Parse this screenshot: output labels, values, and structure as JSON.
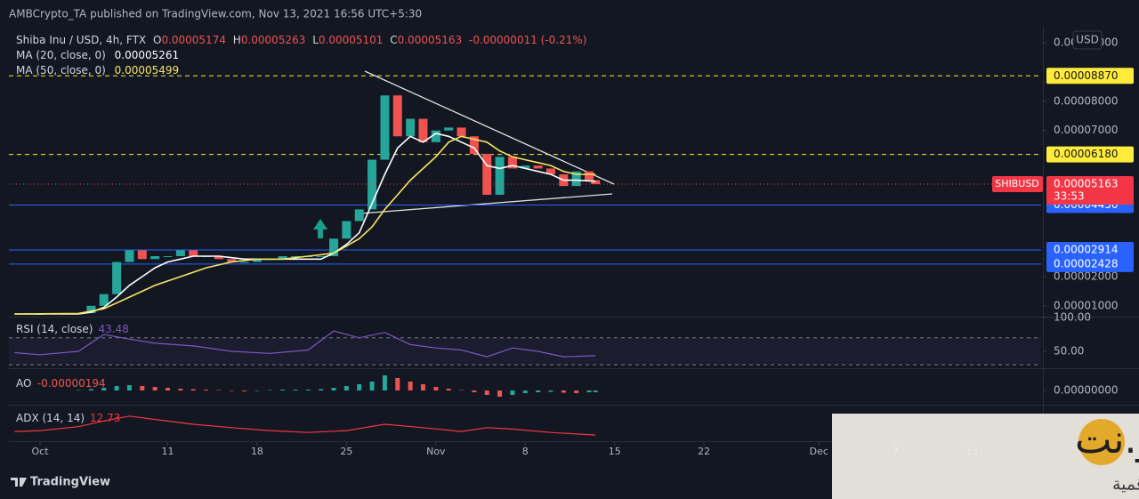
{
  "header": "AMBCrypto_TA published on TradingView.com, Nov 13, 2021 16:56 UTC+5:30",
  "symbol": "Shiba Inu / USD, 4h, FTX",
  "ohlc": [
    {
      "key": "O",
      "value": "0.00005174"
    },
    {
      "key": "H",
      "value": "0.00005263"
    },
    {
      "key": "L",
      "value": "0.00005101"
    },
    {
      "key": "C",
      "value": "0.00005163"
    }
  ],
  "change": "-0.00000011 (-0.21%)",
  "currency_button": "USD",
  "footer": "TradingView",
  "watermark": {
    "name": "الكريبتو.نت",
    "tagline": "أخبار العملات الرقمية"
  },
  "chart_data": [
    {
      "type": "candlestick",
      "xlim": [
        -2.44,
        78.4
      ],
      "ylim": [
        6.6e-06,
        0.000104
      ],
      "xticks": [
        {
          "value": 0,
          "label": "Oct"
        },
        {
          "value": 10,
          "label": "11"
        },
        {
          "value": 17,
          "label": "18"
        },
        {
          "value": 24,
          "label": "25"
        },
        {
          "value": 31,
          "label": "Nov"
        },
        {
          "value": 38,
          "label": "8"
        },
        {
          "value": 45,
          "label": "15"
        },
        {
          "value": 52,
          "label": "22"
        },
        {
          "value": 61,
          "label": "Dec"
        },
        {
          "value": 67,
          "label": "7"
        },
        {
          "value": 73,
          "label": "13"
        }
      ],
      "yticks": [
        {
          "value": 0.0001,
          "label": "0.00010000"
        },
        {
          "value": 8e-05,
          "label": "0.00008000"
        },
        {
          "value": 7e-05,
          "label": "0.00007000"
        },
        {
          "value": 2e-05,
          "label": "0.00002000"
        },
        {
          "value": 1e-05,
          "label": "0.00001000"
        }
      ],
      "up_color": "#26a69a",
      "down_color": "#ef5350",
      "series": [
        {
          "name": "SHIBUSD",
          "color": "#f23645",
          "x": [
            -2,
            0,
            3,
            4,
            5,
            6,
            7,
            8,
            9,
            10,
            11,
            12,
            13,
            14,
            15,
            16,
            17,
            18,
            19,
            20,
            21,
            22,
            23,
            24,
            25,
            26,
            27,
            28,
            29,
            30,
            31,
            32,
            33,
            34,
            35,
            36,
            37,
            38,
            39,
            40,
            41,
            42,
            43,
            43.5
          ],
          "values": [
            7.2e-06,
            7.2e-06,
            7.5e-06,
            1e-05,
            1.4e-05,
            2.5e-05,
            2.9e-05,
            2.6e-05,
            2.7e-05,
            2.7e-05,
            2.9e-05,
            2.7e-05,
            2.7e-05,
            2.6e-05,
            2.5e-05,
            2.5e-05,
            2.6e-05,
            2.6e-05,
            2.7e-05,
            2.7e-05,
            2.7e-05,
            2.7e-05,
            3.3e-05,
            3.9e-05,
            4.3e-05,
            6e-05,
            8.2e-05,
            6.8e-05,
            7.4e-05,
            6.6e-05,
            7e-05,
            7.1e-05,
            6.8e-05,
            6.2e-05,
            4.8e-05,
            6.1e-05,
            5.7e-05,
            5.8e-05,
            5.7e-05,
            5.5e-05,
            5.1e-05,
            5.6e-05,
            5.3e-05,
            5.163e-05
          ],
          "last_label": "0.00005163",
          "countdown": "33:53"
        },
        {
          "name": "MA (20, close, 0)",
          "color": "#ffffff",
          "last_label": "0.00005261",
          "x": [
            -2,
            3,
            4,
            5,
            6,
            7,
            8,
            9,
            10,
            11,
            12,
            14,
            16,
            18,
            20,
            22,
            23,
            24,
            25,
            26,
            27,
            28,
            29,
            30,
            31,
            32,
            33,
            34,
            35,
            36,
            37,
            38,
            39,
            40,
            41,
            42,
            43.5
          ],
          "values": [
            7.2e-06,
            7.2e-06,
            7.8e-06,
            9.5e-06,
            1.3e-05,
            1.7e-05,
            2e-05,
            2.3e-05,
            2.5e-05,
            2.6e-05,
            2.7e-05,
            2.7e-05,
            2.6e-05,
            2.6e-05,
            2.6e-05,
            2.6e-05,
            2.8e-05,
            3.1e-05,
            3.5e-05,
            4.5e-05,
            5.5e-05,
            6.4e-05,
            6.8e-05,
            6.6e-05,
            6.9e-05,
            6.8e-05,
            6.6e-05,
            6.4e-05,
            5.8e-05,
            5.7e-05,
            5.8e-05,
            5.7e-05,
            5.6e-05,
            5.5e-05,
            5.3e-05,
            5.3e-05,
            5.261e-05
          ]
        },
        {
          "name": "MA (50, close, 0)",
          "color": "#f5e663",
          "last_label": "0.00005499",
          "x": [
            -2,
            3,
            5,
            7,
            9,
            11,
            13,
            15,
            17,
            19,
            21,
            23,
            25,
            26,
            27,
            28,
            29,
            30,
            31,
            32,
            33,
            34,
            35,
            36,
            37,
            38,
            39,
            40,
            41,
            42,
            43.5
          ],
          "values": [
            7.2e-06,
            7.4e-06,
            9e-06,
            1.3e-05,
            1.7e-05,
            2e-05,
            2.3e-05,
            2.5e-05,
            2.6e-05,
            2.6e-05,
            2.7e-05,
            2.8e-05,
            3.3e-05,
            3.7e-05,
            4.3e-05,
            4.8e-05,
            5.3e-05,
            5.7e-05,
            6.1e-05,
            6.6e-05,
            6.8e-05,
            6.7e-05,
            6.6e-05,
            6.3e-05,
            6.1e-05,
            6e-05,
            5.9e-05,
            5.8e-05,
            5.6e-05,
            5.5e-05,
            5.499e-05
          ]
        }
      ],
      "levels": [
        {
          "value": 8.87e-05,
          "label": "0.00008870",
          "color": "#ffeb3b",
          "style": "dashed"
        },
        {
          "value": 6.18e-05,
          "label": "0.00006180",
          "color": "#ffeb3b",
          "style": "dashed"
        },
        {
          "value": 4.45e-05,
          "label": "0.00004450",
          "color": "#2962ff",
          "style": "solid"
        },
        {
          "value": 2.914e-05,
          "label": "0.00002914",
          "color": "#2962ff",
          "style": "solid"
        },
        {
          "value": 2.428e-05,
          "label": "0.00002428",
          "color": "#2962ff",
          "style": "solid"
        }
      ]
    },
    {
      "type": "line",
      "title": "RSI (14, close)",
      "value_label": "43.48",
      "color": "#7e57c2",
      "xlim": [
        -2.44,
        78.4
      ],
      "ylim": [
        27.6,
        98.7
      ],
      "bands": [
        30,
        70
      ],
      "yticks": [
        {
          "value": 100,
          "label": "100.00"
        },
        {
          "value": 50,
          "label": "50.00"
        }
      ],
      "x": [
        -2,
        0,
        3,
        5,
        7,
        9,
        12,
        15,
        18,
        21,
        23,
        25,
        27,
        29,
        31,
        33,
        35,
        37,
        39,
        41,
        43.5
      ],
      "values": [
        48,
        45,
        50,
        75,
        68,
        62,
        58,
        50,
        47,
        52,
        80,
        70,
        78,
        60,
        55,
        52,
        42,
        55,
        50,
        42,
        43.48
      ]
    },
    {
      "type": "bar",
      "title": "AO",
      "value_label": "-0.00000194",
      "up_color": "#26a69a",
      "down_color": "#ef5350",
      "xlim": [
        -2.44,
        78.4
      ],
      "ylim": [
        -2e-05,
        2e-05
      ],
      "yticks": [
        {
          "value": 0,
          "label": "0.00000000"
        }
      ],
      "x": [
        3,
        4,
        5,
        6,
        7,
        8,
        9,
        10,
        11,
        12,
        13,
        14,
        15,
        16,
        17,
        18,
        19,
        20,
        21,
        22,
        23,
        24,
        25,
        26,
        27,
        28,
        29,
        30,
        31,
        32,
        33,
        34,
        35,
        36,
        37,
        38,
        39,
        40,
        41,
        42,
        43,
        43.5
      ],
      "values": [
        5e-07,
        1.5e-06,
        3e-06,
        5e-06,
        6e-06,
        5e-06,
        4e-06,
        3e-06,
        2e-06,
        1.5e-06,
        1e-06,
        5e-07,
        -5e-07,
        -1e-06,
        -5e-07,
        5e-07,
        1e-06,
        1e-06,
        1e-06,
        1.5e-06,
        3e-06,
        5e-06,
        7e-06,
        1e-05,
        1.7e-05,
        1.4e-05,
        1e-05,
        7e-06,
        4e-06,
        2e-06,
        5e-07,
        -2e-06,
        -5e-06,
        -7e-06,
        -5e-06,
        -3e-06,
        -2e-06,
        -1.5e-06,
        -2.5e-06,
        -3e-06,
        -2e-06,
        -1.94e-06
      ]
    },
    {
      "type": "line",
      "title": "ADX (14, 14)",
      "value_label": "12.73",
      "color": "#f23645",
      "xlim": [
        -2.44,
        78.4
      ],
      "ylim": [
        0,
        70
      ],
      "x": [
        -2,
        0,
        3,
        5,
        7,
        9,
        12,
        15,
        18,
        21,
        24,
        27,
        30,
        33,
        35,
        37,
        40,
        43.5
      ],
      "values": [
        20,
        22,
        30,
        42,
        52,
        45,
        35,
        28,
        22,
        18,
        22,
        35,
        28,
        20,
        28,
        25,
        18,
        12.73
      ]
    }
  ]
}
